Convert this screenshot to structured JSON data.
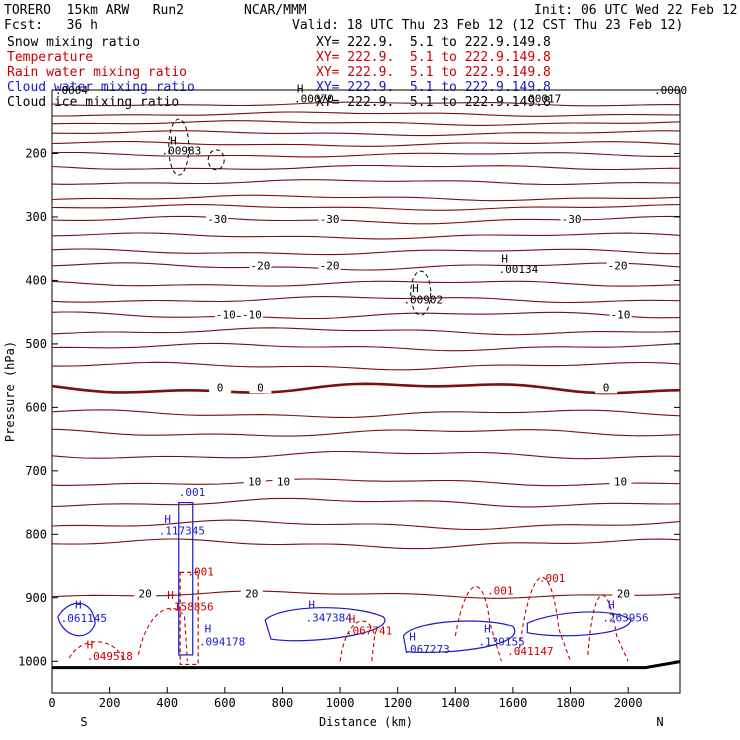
{
  "header": {
    "model": "TORERO  15km ARW   Run2",
    "org": "NCAR/MMM",
    "init": "Init: 06 UTC Wed 22 Feb 12",
    "fcst": "Fcst:   36 h",
    "valid": "Valid: 18 UTC Thu 23 Feb 12 (12 CST Thu 23 Feb 12)"
  },
  "legend": [
    {
      "name": "Snow mixing ratio",
      "xy": "XY= 222.9.  5.1 to 222.9.149.8",
      "color": "#000000"
    },
    {
      "name": "Temperature",
      "xy": "XY= 222.9.  5.1 to 222.9.149.8",
      "color": "#cc0000"
    },
    {
      "name": "Rain water mixing ratio",
      "xy": "XY= 222.9.  5.1 to 222.9.149.8",
      "color": "#cc0000"
    },
    {
      "name": "Cloud water mixing ratio",
      "xy": "XY= 222.9.  5.1 to 222.9.149.8",
      "color": "#1a1acc"
    },
    {
      "name": "Cloud ice mixing ratio",
      "xy": "XY= 222.9.  5.1 to 222.9.149.8",
      "color": "#000000"
    }
  ],
  "chart_data": {
    "type": "line",
    "xlabel": "Distance (km)",
    "ylabel": "Pressure (hPa)",
    "xlim": [
      0,
      2180
    ],
    "ylim": [
      1050,
      100
    ],
    "x_ticks": [
      0,
      200,
      400,
      600,
      800,
      1000,
      1200,
      1400,
      1600,
      1800,
      2000
    ],
    "y_ticks": [
      200,
      300,
      400,
      500,
      600,
      700,
      800,
      900,
      1000
    ],
    "left_end_label": "S",
    "right_end_label": "N",
    "temperature_color": "#7a1010",
    "freezing_color": "#7a1010",
    "ground_color": "#000000",
    "isotherms": [
      {
        "label": "-30",
        "p": 305,
        "labels_at": [
          570,
          960,
          1800
        ]
      },
      {
        "label": "-20",
        "p": 378,
        "labels_at": [
          720,
          960,
          1960
        ]
      },
      {
        "label": "-10",
        "p": 455,
        "labels_at": [
          600,
          690,
          1970
        ]
      },
      {
        "label": "0",
        "p": 570,
        "labels_at": [
          580,
          720,
          1920
        ]
      },
      {
        "label": "10",
        "p": 718,
        "labels_at": [
          700,
          800,
          1970
        ]
      },
      {
        "label": "20",
        "p": 895,
        "labels_at": [
          320,
          690,
          1980
        ]
      }
    ],
    "temp_contour_pressures": [
      122,
      138,
      152,
      168,
      185,
      202,
      222,
      245,
      270,
      285,
      330,
      355,
      405,
      430,
      480,
      505,
      535,
      610,
      640,
      675,
      750,
      785,
      815
    ],
    "snow_labels": [
      {
        "text": "H",
        "x": 410,
        "p": 186
      },
      {
        "text": ".00983",
        "x": 380,
        "p": 202
      },
      {
        "text": "H",
        "x": 1250,
        "p": 418
      },
      {
        "text": ".00902",
        "x": 1220,
        "p": 436
      },
      {
        "text": "H",
        "x": 1560,
        "p": 372
      },
      {
        "text": ".00134",
        "x": 1550,
        "p": 388
      }
    ],
    "top_labels": [
      {
        "text": ".0004",
        "x": 10,
        "p": 106
      },
      {
        "text": "H",
        "x": 850,
        "p": 104
      },
      {
        "text": ".00070",
        "x": 840,
        "p": 120
      },
      {
        "text": ".00017",
        "x": 1630,
        "p": 120
      },
      {
        "text": ".0000",
        "x": 2090,
        "p": 106
      }
    ],
    "cloud_water_labels": [
      {
        "text": ".001",
        "x": 440,
        "p": 740
      },
      {
        "text": "H",
        "x": 390,
        "p": 782
      },
      {
        "text": ".117345",
        "x": 370,
        "p": 800
      },
      {
        "text": "H",
        "x": 80,
        "p": 917
      },
      {
        "text": ".061145",
        "x": 30,
        "p": 938
      },
      {
        "text": "H",
        "x": 530,
        "p": 955
      },
      {
        "text": ".094178",
        "x": 510,
        "p": 975
      },
      {
        "text": "H",
        "x": 890,
        "p": 917
      },
      {
        "text": ".347384",
        "x": 880,
        "p": 937
      },
      {
        "text": "H",
        "x": 1240,
        "p": 967
      },
      {
        "text": ".067273",
        "x": 1220,
        "p": 987
      },
      {
        "text": "H",
        "x": 1500,
        "p": 955
      },
      {
        "text": ".139155",
        "x": 1480,
        "p": 975
      },
      {
        "text": "H",
        "x": 1930,
        "p": 917
      },
      {
        "text": ".263956",
        "x": 1910,
        "p": 937
      }
    ],
    "rain_labels": [
      {
        "text": ".001",
        "x": 470,
        "p": 865
      },
      {
        "text": "H",
        "x": 400,
        "p": 902
      },
      {
        "text": ".158856",
        "x": 400,
        "p": 920
      },
      {
        "text": "H",
        "x": 120,
        "p": 980
      },
      {
        "text": ".049518",
        "x": 120,
        "p": 998
      },
      {
        "text": "H",
        "x": 1030,
        "p": 940
      },
      {
        "text": ".067741",
        "x": 1020,
        "p": 958
      },
      {
        "text": ".001",
        "x": 1510,
        "p": 895
      },
      {
        "text": ".001",
        "x": 1690,
        "p": 875
      },
      {
        "text": ".041147",
        "x": 1580,
        "p": 990
      }
    ]
  }
}
